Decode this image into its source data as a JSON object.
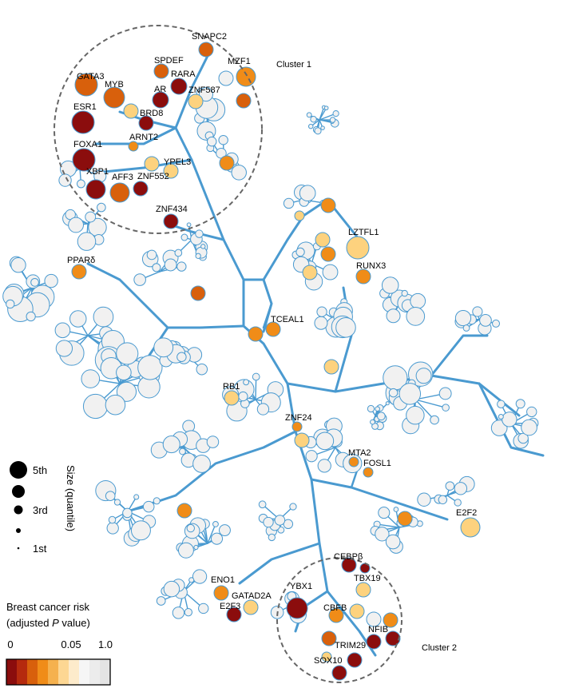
{
  "clusters": [
    {
      "name": "Cluster 1"
    },
    {
      "name": "Cluster 2"
    }
  ],
  "gene_labels": [
    "SNAPC2",
    "SPDEF",
    "MZF1",
    "GATA3",
    "MYB",
    "RARA",
    "AR",
    "ZNF587",
    "ESR1",
    "BRD8",
    "ARNT2",
    "FOXA1",
    "YPEL3",
    "XBP1",
    "AFF3",
    "ZNF552",
    "ZNF434",
    "LZTFL1",
    "PPARδ",
    "RUNX3",
    "TCEAL1",
    "RB1",
    "ZNF24",
    "MTA2",
    "FOSL1",
    "E2F2",
    "CEBPβ",
    "TBX19",
    "ENO1",
    "YBX1",
    "GATAD2A",
    "CBFB",
    "E2F3",
    "NFIB",
    "TRIM29",
    "SOX10"
  ],
  "size_legend": {
    "title": "Size (quantile)",
    "levels": [
      {
        "label": "5th",
        "quantile": 5
      },
      {
        "label": "",
        "quantile": 4
      },
      {
        "label": "3rd",
        "quantile": 3
      },
      {
        "label": "",
        "quantile": 2
      },
      {
        "label": "1st",
        "quantile": 1
      }
    ]
  },
  "color_legend": {
    "title_line1": "Breast cancer risk",
    "title_line2_pre": "(adjusted ",
    "title_line2_italic": "P",
    "title_line2_post": " value)",
    "ticks": [
      "0",
      "0.05",
      "1.0"
    ],
    "colors": [
      "#8b0d0d",
      "#b52a0e",
      "#d8600c",
      "#f08c18",
      "#f5b14e",
      "#fdd793",
      "#fdebcb",
      "#f6f6f6",
      "#ececec",
      "#e4e4e4"
    ]
  },
  "colors": {
    "edge": "#4a9ad0",
    "node_stroke": "#4a9ad0",
    "node_fill_default": "#f1f1f1",
    "cluster_outline": "#666666",
    "risk_darkred": "#8b0d0d",
    "risk_orange": "#d8600c",
    "risk_amber": "#f08c18",
    "risk_light": "#fdd27e"
  }
}
